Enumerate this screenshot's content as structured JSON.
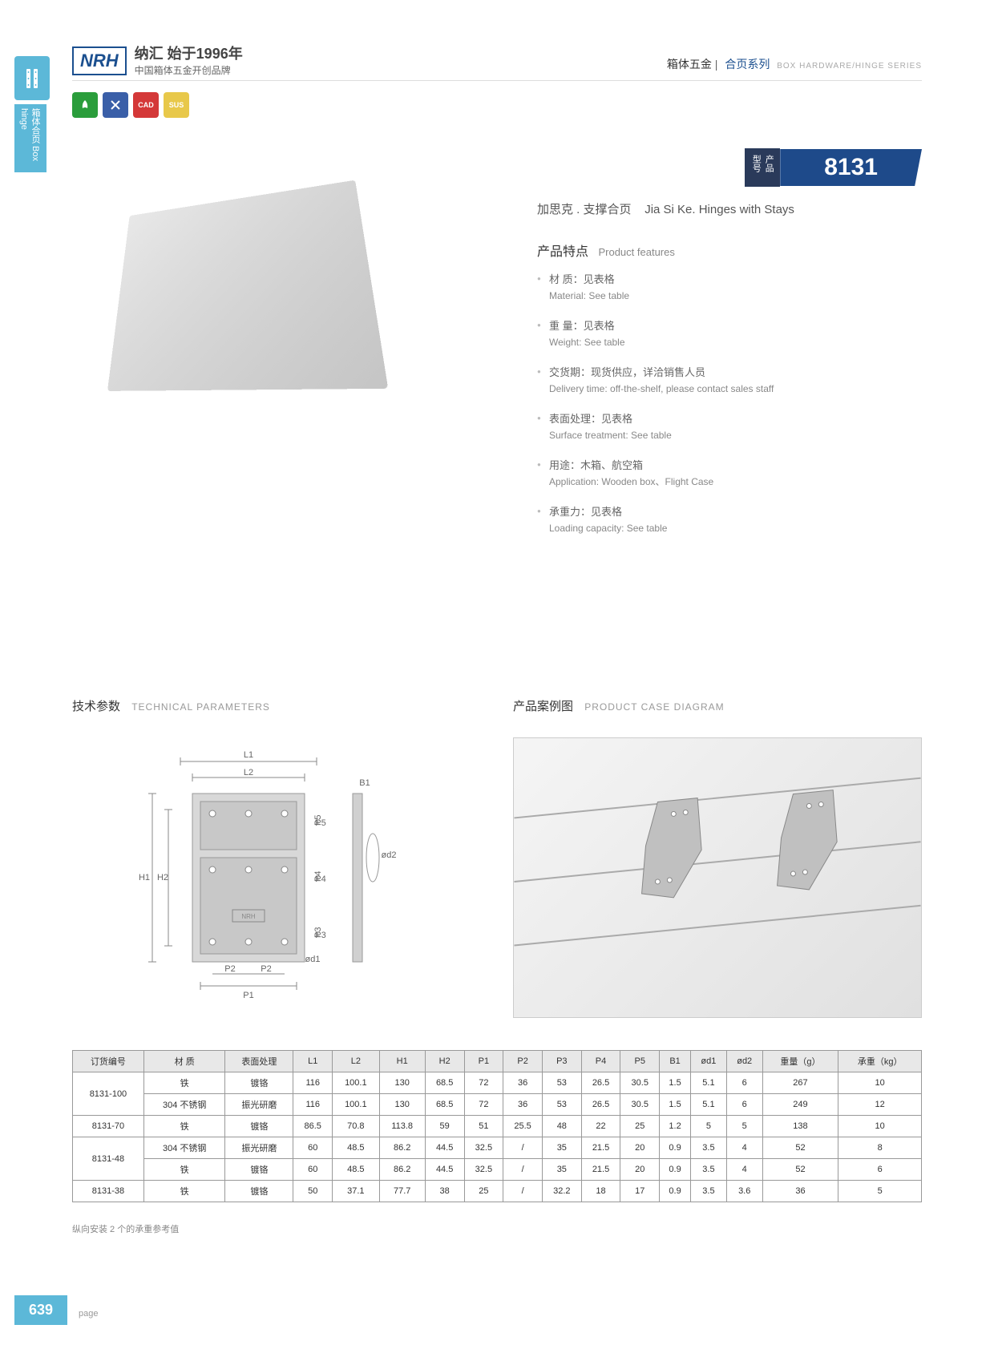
{
  "sidebar": {
    "tab2": "箱体合页 Box hinge"
  },
  "header": {
    "logo": "NRH",
    "brand_l1": "纳汇 始于1996年",
    "brand_l2": "中国箱体五金开创品牌"
  },
  "category": {
    "c1": "箱体五金",
    "c2": "合页系列",
    "c3": "BOX HARDWARE/HINGE SERIES"
  },
  "icons": {
    "i1": "",
    "i2": "",
    "i3": "CAD",
    "i4": "SUS"
  },
  "model": {
    "label": "产品型号",
    "num": "8131"
  },
  "subtitle": {
    "cn": "加思克 . 支撑合页",
    "en": "Jia Si Ke. Hinges with Stays"
  },
  "features": {
    "title_cn": "产品特点",
    "title_en": "Product features",
    "items": [
      {
        "cn": "材 质：见表格",
        "en": "Material: See table"
      },
      {
        "cn": "重 量：见表格",
        "en": "Weight: See table"
      },
      {
        "cn": "交货期：现货供应，详洽销售人员",
        "en": "Delivery time: off-the-shelf, please contact sales staff"
      },
      {
        "cn": "表面处理：见表格",
        "en": "Surface treatment: See table"
      },
      {
        "cn": "用途：木箱、航空箱",
        "en": "Application: Wooden box、Flight Case"
      },
      {
        "cn": "承重力：见表格",
        "en": "Loading capacity: See table"
      }
    ]
  },
  "tech": {
    "title_cn": "技术参数",
    "title_en": "TECHNICAL PARAMETERS"
  },
  "case": {
    "title_cn": "产品案例图",
    "title_en": "PRODUCT CASE DIAGRAM"
  },
  "diagram": {
    "labels": [
      "L1",
      "L2",
      "H1",
      "H2",
      "P1",
      "P2",
      "P3",
      "P4",
      "P5",
      "B1",
      "ød1",
      "ød2"
    ]
  },
  "table": {
    "columns": [
      "订货编号",
      "材 质",
      "表面处理",
      "L1",
      "L2",
      "H1",
      "H2",
      "P1",
      "P2",
      "P3",
      "P4",
      "P5",
      "B1",
      "ød1",
      "ød2",
      "重量（g）",
      "承重（kg）"
    ],
    "rows": [
      [
        "8131-100",
        "铁",
        "镀铬",
        "116",
        "100.1",
        "130",
        "68.5",
        "72",
        "36",
        "53",
        "26.5",
        "30.5",
        "1.5",
        "5.1",
        "6",
        "267",
        "10"
      ],
      [
        "",
        "304 不锈钢",
        "振光研磨",
        "116",
        "100.1",
        "130",
        "68.5",
        "72",
        "36",
        "53",
        "26.5",
        "30.5",
        "1.5",
        "5.1",
        "6",
        "249",
        "12"
      ],
      [
        "8131-70",
        "铁",
        "镀铬",
        "86.5",
        "70.8",
        "113.8",
        "59",
        "51",
        "25.5",
        "48",
        "22",
        "25",
        "1.2",
        "5",
        "5",
        "138",
        "10"
      ],
      [
        "8131-48",
        "304 不锈钢",
        "振光研磨",
        "60",
        "48.5",
        "86.2",
        "44.5",
        "32.5",
        "/",
        "35",
        "21.5",
        "20",
        "0.9",
        "3.5",
        "4",
        "52",
        "8"
      ],
      [
        "",
        "铁",
        "镀铬",
        "60",
        "48.5",
        "86.2",
        "44.5",
        "32.5",
        "/",
        "35",
        "21.5",
        "20",
        "0.9",
        "3.5",
        "4",
        "52",
        "6"
      ],
      [
        "8131-38",
        "铁",
        "镀铬",
        "50",
        "37.1",
        "77.7",
        "38",
        "25",
        "/",
        "32.2",
        "18",
        "17",
        "0.9",
        "3.5",
        "3.6",
        "36",
        "5"
      ]
    ],
    "rowspans": {
      "0": 2,
      "3": 2
    }
  },
  "note": "纵向安装 2 个的承重参考值",
  "page": {
    "num": "639",
    "label": "page"
  }
}
